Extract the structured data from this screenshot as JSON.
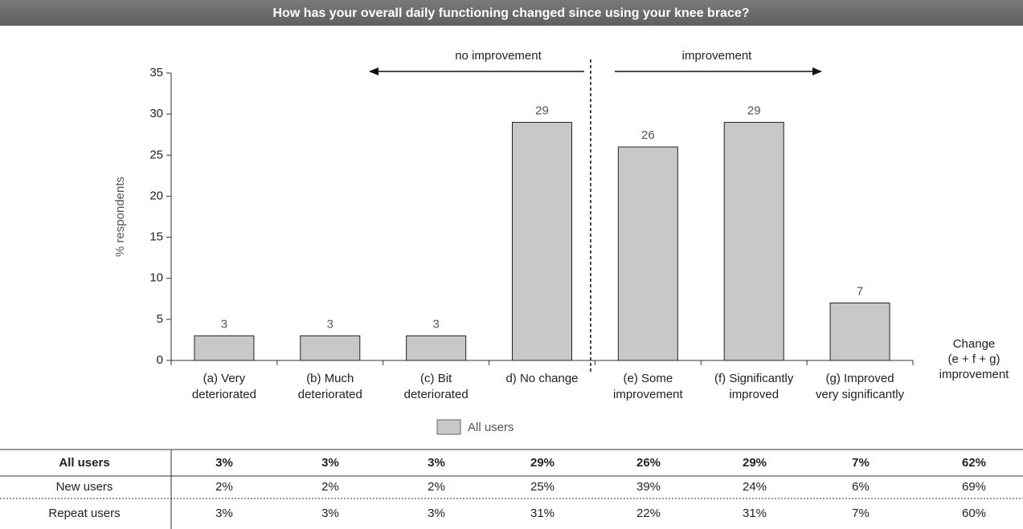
{
  "chart_data": {
    "type": "bar",
    "title": "How has your overall daily functioning changed since using your knee brace?",
    "annotations": [
      "no improvement",
      "improvement"
    ],
    "side_label": "Change\n(e + f + g)\nimprovement",
    "ylabel": "% respondents",
    "categories": [
      "(a) Very\ndeteriorated",
      "(b) Much\ndeteriorated",
      "(c) Bit\ndeteriorated",
      "d) No change",
      "(e) Some\nimprovement",
      "(f) Significantly\nimproved",
      "(g) Improved\nvery significantly"
    ],
    "series": [
      {
        "name": "All users",
        "color": "#c8c8c8",
        "values": [
          3,
          3,
          3,
          29,
          26,
          29,
          7
        ]
      }
    ],
    "ylim": [
      0,
      35
    ],
    "yticks": [
      0,
      5,
      10,
      15,
      20,
      25,
      30,
      35
    ]
  },
  "table": {
    "rows": [
      [
        "All users",
        "3%",
        "3%",
        "3%",
        "29%",
        "26%",
        "29%",
        "7%",
        "62%"
      ],
      [
        "New users",
        "2%",
        "2%",
        "2%",
        "25%",
        "39%",
        "24%",
        "6%",
        "69%"
      ],
      [
        "Repeat users",
        "3%",
        "3%",
        "3%",
        "31%",
        "22%",
        "31%",
        "7%",
        "60%"
      ]
    ]
  }
}
